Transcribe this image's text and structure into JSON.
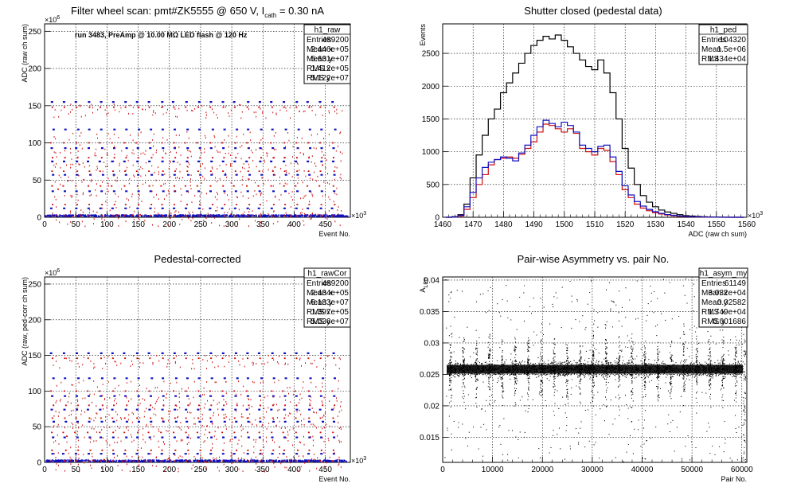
{
  "chart_data": [
    {
      "id": "raw",
      "type": "scatter",
      "title_main": "Filter wheel scan: pmt#ZK5555 @   650 V, I",
      "title_sub": "cath",
      "title_tail": " = 0.30 nA",
      "ylabel": "ADC (raw ch sum)",
      "xlabel": "Event No.",
      "x_exp": "×10",
      "x_exp_pow": "3",
      "y_exp": "×10",
      "y_exp_pow": "6",
      "xlim": [
        0,
        490
      ],
      "ylim": [
        0,
        260
      ],
      "x_ticks": [
        "0",
        "50",
        "100",
        "150",
        "200",
        "250",
        "300",
        "350",
        "400",
        "450"
      ],
      "y_ticks": [
        "0",
        "50",
        "100",
        "150",
        "200",
        "250"
      ],
      "grid": true,
      "annotation": "run 3483, PreAmp @ 10.00 MΩ LED flash @  120 Hz",
      "levels": [
        155,
        148,
        118,
        100,
        93,
        80,
        75,
        62,
        57,
        42,
        35,
        17,
        12,
        2
      ],
      "stats": {
        "name": "h1_raw",
        "rows": [
          [
            "Entries",
            "489200"
          ],
          [
            "Mean x",
            "2.446e+05"
          ],
          [
            "Mean y",
            "5.631e+07"
          ],
          [
            "RMS x",
            "1.412e+05"
          ],
          [
            "RMS y",
            "5.122e+07"
          ]
        ]
      }
    },
    {
      "id": "ped",
      "type": "line",
      "title": "Shutter closed (pedestal data)",
      "ylabel": "Events",
      "xlabel": "ADC (raw ch sum)",
      "x_exp": "×10",
      "x_exp_pow": "3",
      "xlim": [
        1460,
        1560
      ],
      "ylim": [
        0,
        2950
      ],
      "x_ticks": [
        "1460",
        "1470",
        "1480",
        "1490",
        "1500",
        "1510",
        "1520",
        "1530",
        "1540",
        "1550",
        "1560"
      ],
      "y_ticks": [
        "0",
        "500",
        "1000",
        "1500",
        "2000",
        "2500"
      ],
      "grid": true,
      "series": [
        {
          "color": "#000000",
          "x": [
            1462,
            1464,
            1466,
            1468,
            1470,
            1472,
            1474,
            1476,
            1478,
            1480,
            1482,
            1484,
            1486,
            1488,
            1490,
            1492,
            1494,
            1496,
            1498,
            1500,
            1502,
            1504,
            1506,
            1508,
            1510,
            1512,
            1514,
            1516,
            1518,
            1520,
            1522,
            1524,
            1526,
            1528,
            1530,
            1532,
            1534,
            1536,
            1538,
            1540,
            1542,
            1544,
            1546,
            1548,
            1550,
            1552,
            1554,
            1556,
            1558
          ],
          "y": [
            0,
            10,
            40,
            200,
            600,
            950,
            1250,
            1500,
            1650,
            1900,
            2050,
            2200,
            2350,
            2500,
            2620,
            2700,
            2760,
            2720,
            2780,
            2700,
            2600,
            2500,
            2400,
            2300,
            2250,
            2400,
            2200,
            1900,
            1500,
            1050,
            750,
            500,
            330,
            230,
            160,
            110,
            80,
            60,
            40,
            25,
            18,
            12,
            8,
            5,
            3,
            2,
            1,
            0,
            0
          ]
        },
        {
          "color": "#d01010",
          "x": [
            1462,
            1464,
            1466,
            1468,
            1470,
            1472,
            1474,
            1476,
            1478,
            1480,
            1482,
            1484,
            1486,
            1488,
            1490,
            1492,
            1494,
            1496,
            1498,
            1500,
            1502,
            1504,
            1506,
            1508,
            1510,
            1512,
            1514,
            1516,
            1518,
            1520,
            1522,
            1524,
            1526,
            1528,
            1530,
            1532,
            1534,
            1536,
            1538,
            1540,
            1542,
            1544,
            1546,
            1548,
            1550,
            1552,
            1554,
            1556,
            1558
          ],
          "y": [
            0,
            5,
            20,
            120,
            300,
            500,
            650,
            800,
            880,
            900,
            920,
            900,
            960,
            1050,
            1150,
            1300,
            1420,
            1400,
            1350,
            1300,
            1350,
            1280,
            1050,
            1000,
            950,
            1050,
            1020,
            850,
            650,
            420,
            300,
            200,
            140,
            100,
            70,
            50,
            35,
            22,
            15,
            10,
            6,
            4,
            2,
            1,
            1,
            0,
            0,
            0,
            0
          ]
        },
        {
          "color": "#1010c0",
          "x": [
            1462,
            1464,
            1466,
            1468,
            1470,
            1472,
            1474,
            1476,
            1478,
            1480,
            1482,
            1484,
            1486,
            1488,
            1490,
            1492,
            1494,
            1496,
            1498,
            1500,
            1502,
            1504,
            1506,
            1508,
            1510,
            1512,
            1514,
            1516,
            1518,
            1520,
            1522,
            1524,
            1526,
            1528,
            1530,
            1532,
            1534,
            1536,
            1538,
            1540,
            1542,
            1544,
            1546,
            1548,
            1550,
            1552,
            1554,
            1556,
            1558
          ],
          "y": [
            0,
            5,
            30,
            160,
            380,
            600,
            760,
            840,
            880,
            920,
            900,
            860,
            980,
            1100,
            1250,
            1380,
            1480,
            1430,
            1380,
            1450,
            1400,
            1300,
            1100,
            1050,
            1000,
            1080,
            1100,
            920,
            700,
            480,
            340,
            240,
            170,
            120,
            85,
            60,
            42,
            30,
            20,
            14,
            9,
            6,
            4,
            2,
            1,
            1,
            0,
            0,
            0
          ]
        }
      ],
      "stats": {
        "name": "h1_ped",
        "rows": [
          [
            "Entries",
            "104320"
          ],
          [
            "Mean",
            "1.5e+06"
          ],
          [
            "RMS",
            "1.434e+04"
          ]
        ]
      }
    },
    {
      "id": "rawcor",
      "type": "scatter",
      "title": "Pedestal-corrected",
      "ylabel": "ADC (raw, ped-corr ch sum)",
      "xlabel": "Event No.",
      "x_exp": "×10",
      "x_exp_pow": "3",
      "y_exp": "×10",
      "y_exp_pow": "6",
      "xlim": [
        0,
        490
      ],
      "ylim": [
        0,
        260
      ],
      "x_ticks": [
        "0",
        "50",
        "100",
        "150",
        "200",
        "250",
        "300",
        "350",
        "400",
        "450"
      ],
      "y_ticks": [
        "0",
        "50",
        "100",
        "150",
        "200",
        "250"
      ],
      "grid": true,
      "levels": [
        153,
        146,
        118,
        100,
        93,
        80,
        74,
        62,
        57,
        42,
        35,
        17,
        12,
        2
      ],
      "stats": {
        "name": "h1_rawCor",
        "rows": [
          [
            "Entries",
            "489200"
          ],
          [
            "Mean x",
            "2.434e+05"
          ],
          [
            "Mean y",
            "6.133e+07"
          ],
          [
            "RMS x",
            "1.397e+05"
          ],
          [
            "RMS y",
            "5.036e+07"
          ]
        ]
      }
    },
    {
      "id": "asym",
      "type": "scatter",
      "title": "Pair-wise Asymmetry vs. pair No.",
      "ylabel": "A",
      "ylabel_sub": "LED",
      "xlabel": "Pair No.",
      "xlim": [
        0,
        61000
      ],
      "ylim": [
        0.011,
        0.0405
      ],
      "x_ticks": [
        "0",
        "10000",
        "20000",
        "30000",
        "40000",
        "50000",
        "60000"
      ],
      "x_tick_values": [
        0,
        10000,
        20000,
        30000,
        40000,
        50000,
        60000
      ],
      "y_ticks": [
        "0.015",
        "0.02",
        "0.025",
        "0.03",
        "0.035",
        "0.04"
      ],
      "y_tick_values": [
        0.015,
        0.02,
        0.025,
        0.03,
        0.035,
        0.04
      ],
      "grid": true,
      "band_center": 0.02582,
      "stats": {
        "name": "h1_asym_my",
        "rows": [
          [
            "Entries",
            "61149"
          ],
          [
            "Mean x",
            "3.032e+04"
          ],
          [
            "Mean y",
            "0.02582"
          ],
          [
            "RMS x",
            "1.749e+04"
          ],
          [
            "RMS y",
            "0.001686"
          ]
        ]
      }
    }
  ]
}
